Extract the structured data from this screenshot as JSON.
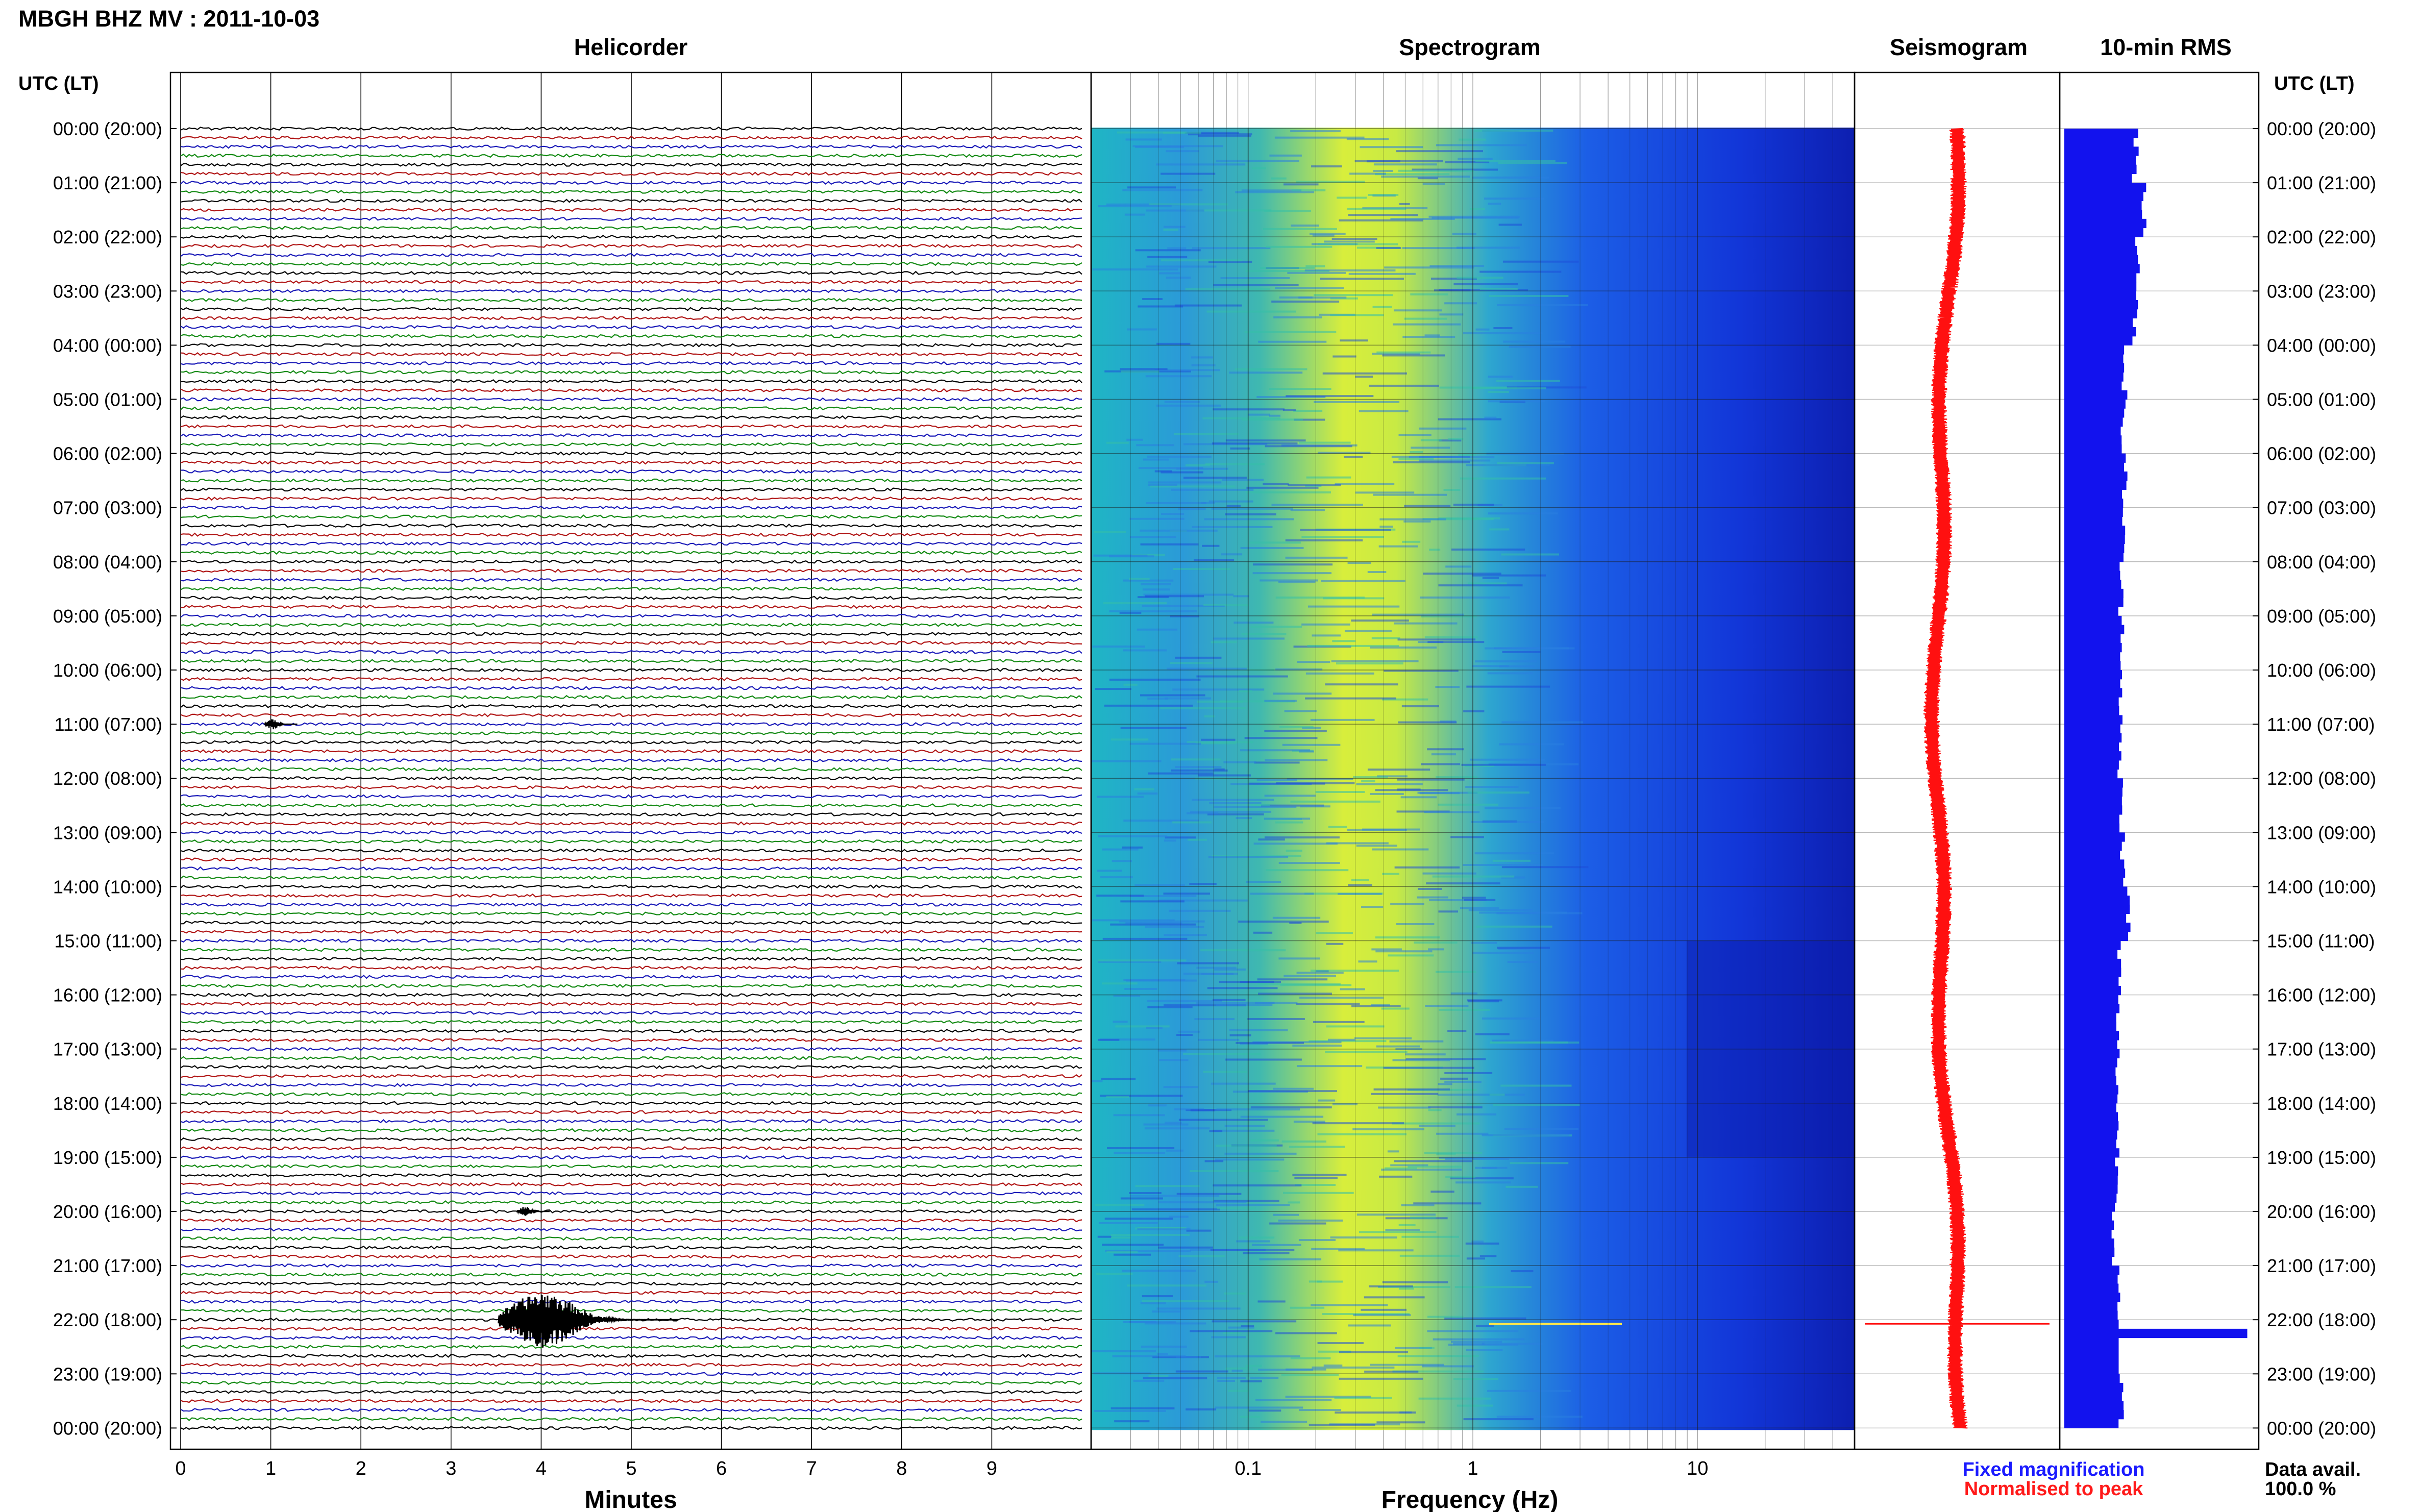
{
  "header": {
    "title": "MBGH BHZ MV : 2011-10-03",
    "left_axis_label": "UTC (LT)",
    "right_axis_label": "UTC (LT)"
  },
  "panels": {
    "helicorder_title": "Helicorder",
    "spectrogram_title": "Spectrogram",
    "seismogram_title": "Seismogram",
    "rms_title": "10-min RMS"
  },
  "time_labels": [
    "00:00 (20:00)",
    "01:00 (21:00)",
    "02:00 (22:00)",
    "03:00 (23:00)",
    "04:00 (00:00)",
    "05:00 (01:00)",
    "06:00 (02:00)",
    "07:00 (03:00)",
    "08:00 (04:00)",
    "09:00 (05:00)",
    "10:00 (06:00)",
    "11:00 (07:00)",
    "12:00 (08:00)",
    "13:00 (09:00)",
    "14:00 (10:00)",
    "15:00 (11:00)",
    "16:00 (12:00)",
    "17:00 (13:00)",
    "18:00 (14:00)",
    "19:00 (15:00)",
    "20:00 (16:00)",
    "21:00 (17:00)",
    "22:00 (18:00)",
    "23:00 (19:00)",
    "00:00 (20:00)"
  ],
  "legend": {
    "fixed": "Fixed magnification",
    "fixed_color": "#1a1aff",
    "normalised": "Normalised to peak",
    "normalised_color": "#ff1a1a",
    "data_avail_label": "Data avail.",
    "data_avail_value": "100.0 %"
  },
  "colors": {
    "trace_cycle": [
      "#000000",
      "#b01414",
      "#1a1ab8",
      "#138a13"
    ],
    "rms_bar": "#1212ee",
    "seismogram": "#ff1010"
  },
  "chart_data": [
    {
      "type": "line",
      "name": "helicorder",
      "title": "Helicorder",
      "xlabel": "Minutes",
      "x_ticks": [
        "0",
        "1",
        "2",
        "3",
        "4",
        "5",
        "6",
        "7",
        "8",
        "9"
      ],
      "xlim": [
        0,
        10
      ],
      "rows_per_hour": 6,
      "hours": 24,
      "events": [
        {
          "time_utc": "11:00",
          "minute": 1.0,
          "amplitude": "small"
        },
        {
          "time_utc": "20:00",
          "minute": 3.8,
          "amplitude": "small"
        },
        {
          "time_utc": "22:00",
          "minute": 3.9,
          "amplitude": "large"
        }
      ]
    },
    {
      "type": "heatmap",
      "name": "spectrogram",
      "title": "Spectrogram",
      "xlabel": "Frequency (Hz)",
      "x_scale": "log",
      "xlim": [
        0.02,
        50
      ],
      "x_ticks": [
        "0.1",
        "1",
        "10"
      ],
      "dominant_band_hz": [
        0.25,
        0.5
      ],
      "transient_at": "22:00"
    },
    {
      "type": "line",
      "name": "seismogram",
      "title": "Seismogram",
      "event_spike_at": "22:00"
    },
    {
      "type": "bar",
      "name": "rms",
      "title": "10-min RMS",
      "categories": [
        "00:00",
        "01:00",
        "02:00",
        "03:00",
        "04:00",
        "05:00",
        "06:00",
        "07:00",
        "08:00",
        "09:00",
        "10:00",
        "11:00",
        "12:00",
        "13:00",
        "14:00",
        "15:00",
        "16:00",
        "17:00",
        "18:00",
        "19:00",
        "20:00",
        "21:00",
        "22:00",
        "23:00"
      ],
      "values": [
        0.4,
        0.45,
        0.42,
        0.4,
        0.34,
        0.33,
        0.34,
        0.33,
        0.32,
        0.33,
        0.32,
        0.31,
        0.32,
        0.33,
        0.36,
        0.31,
        0.3,
        0.3,
        0.3,
        0.3,
        0.28,
        0.3,
        1.0,
        0.32
      ],
      "event_peak_at": "22:00"
    }
  ]
}
